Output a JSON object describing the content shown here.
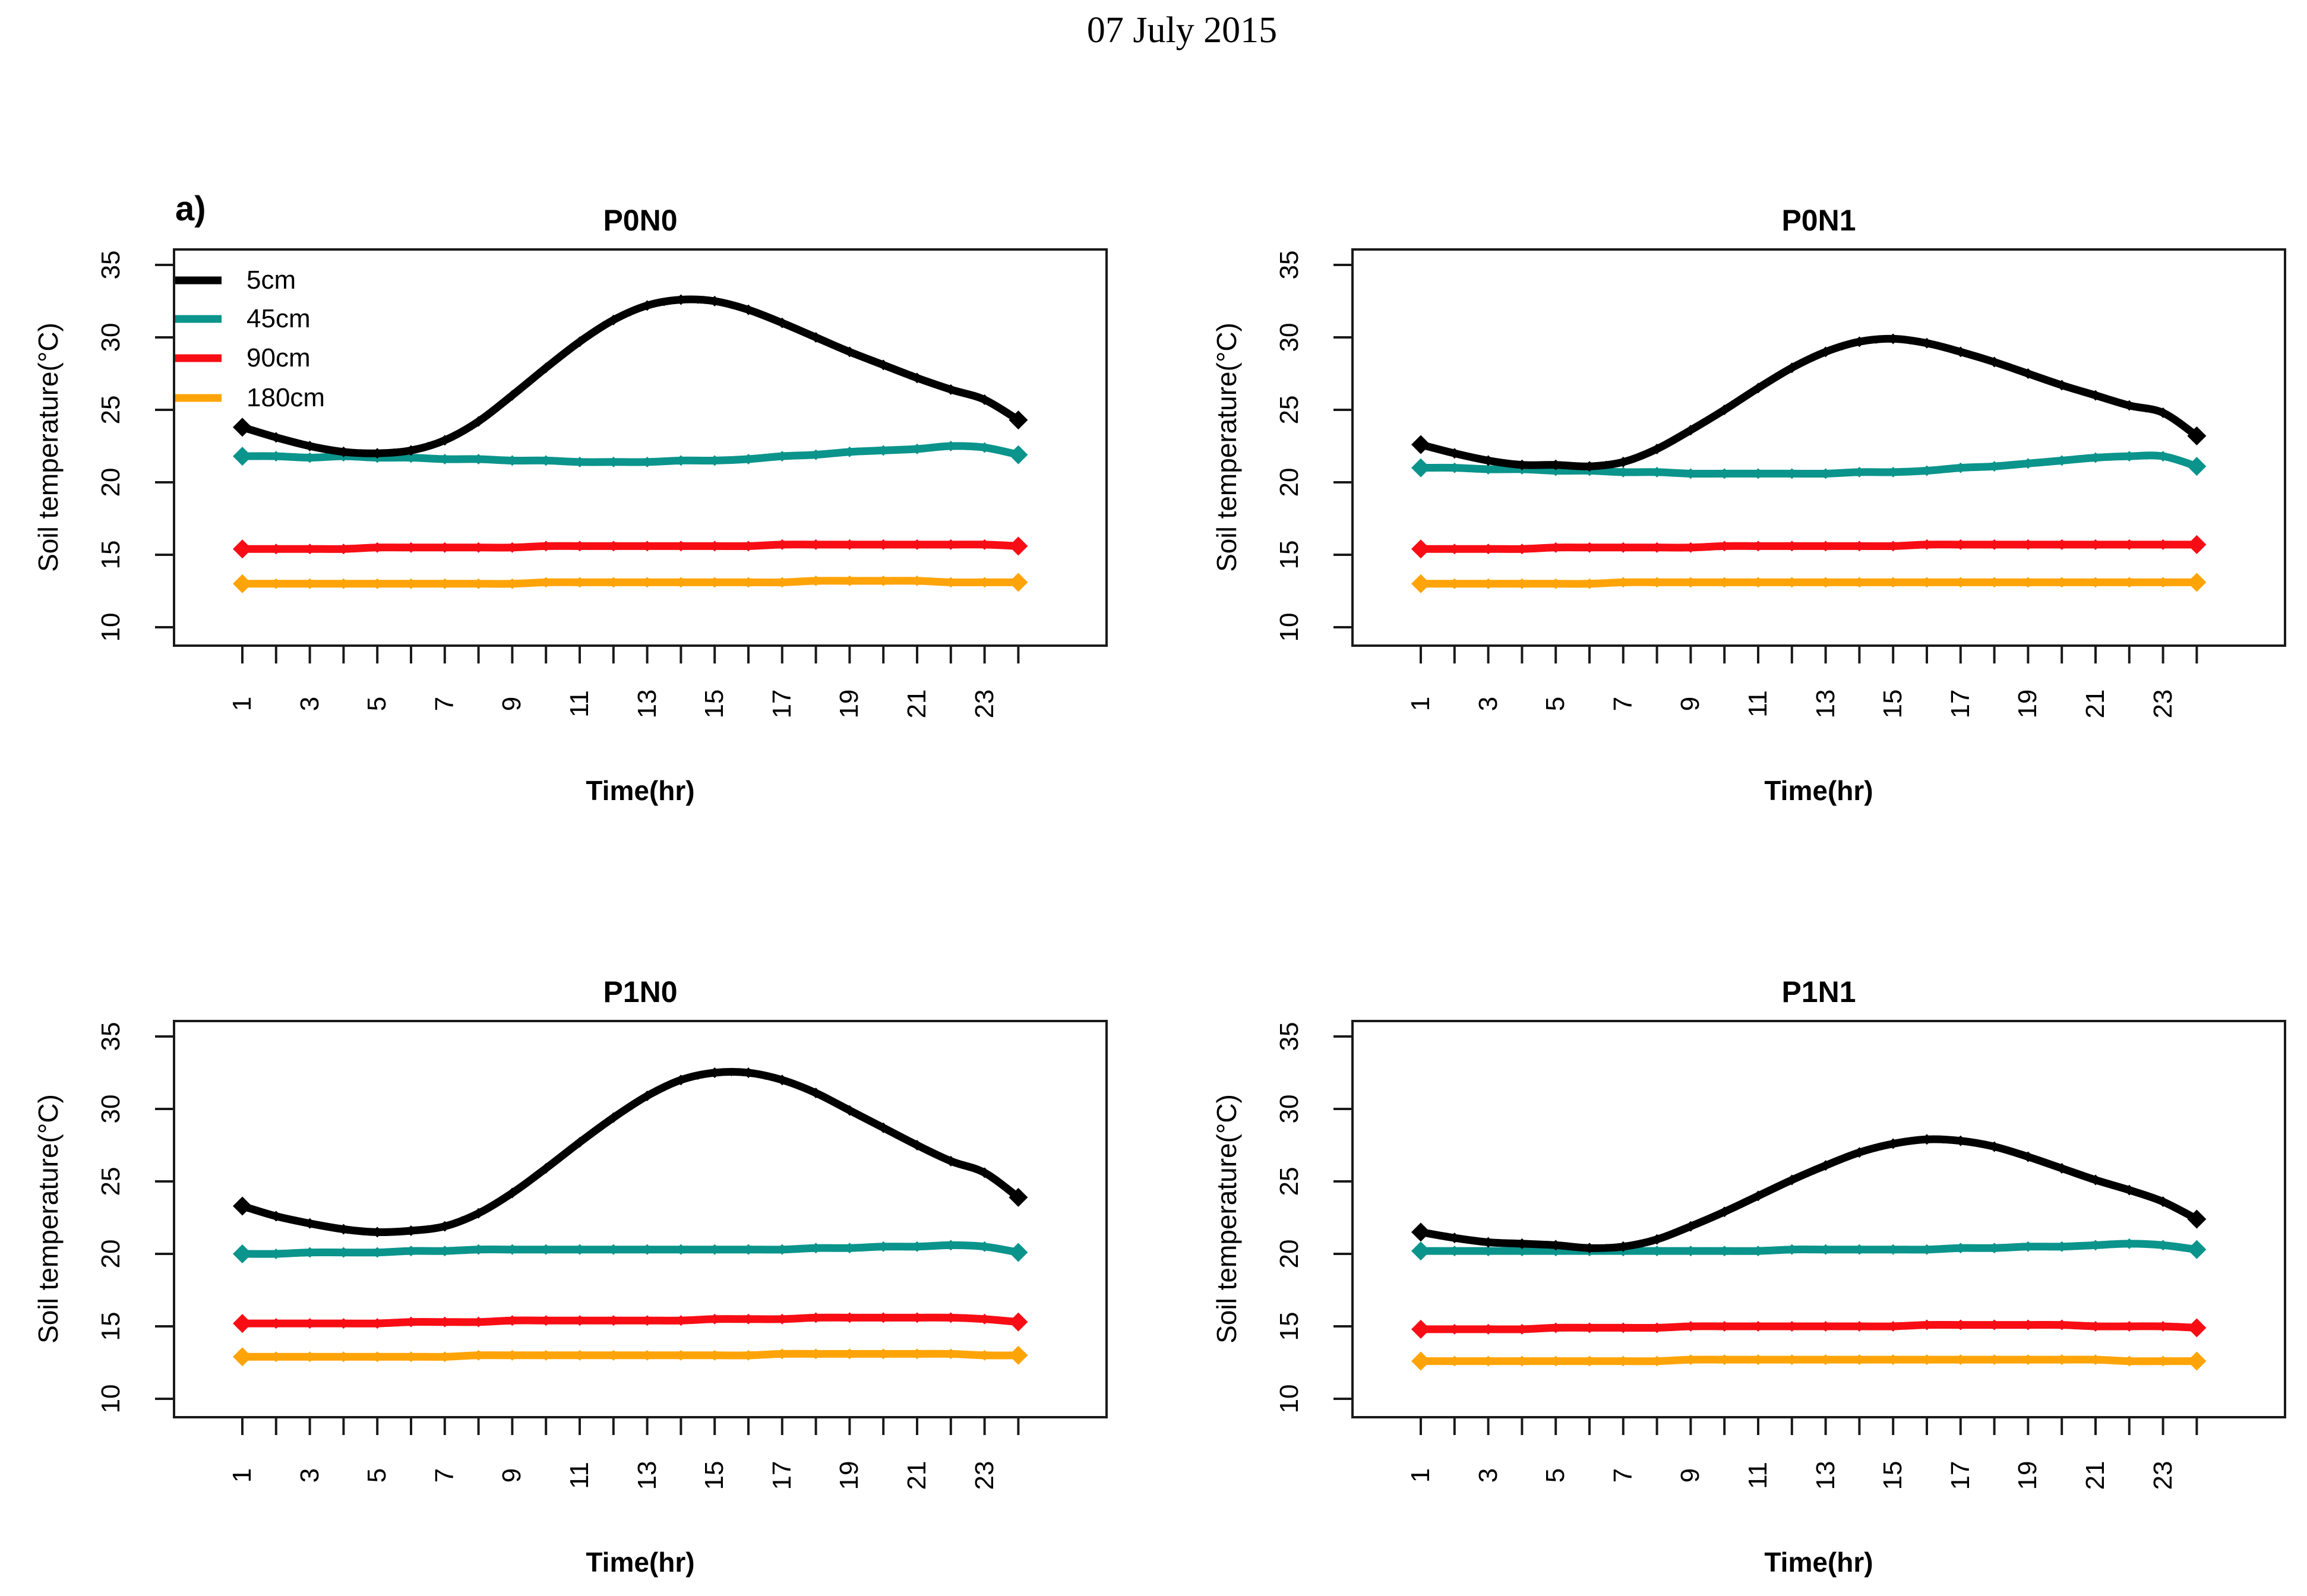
{
  "figure": {
    "title": "07 July 2015",
    "panel_label": "a)"
  },
  "legend": {
    "position": "top-left-inside-first-plot",
    "items": [
      {
        "label": "5cm",
        "color": "#000000"
      },
      {
        "label": "45cm",
        "color": "#0a948c"
      },
      {
        "label": "90cm",
        "color": "#f80d15"
      },
      {
        "label": "180cm",
        "color": "#ffa408"
      }
    ]
  },
  "axes": {
    "x_title": "Time(hr)",
    "y_title": "Soil temperature(°C)",
    "x_ticks": [
      1,
      2,
      3,
      4,
      5,
      6,
      7,
      8,
      9,
      10,
      11,
      12,
      13,
      14,
      15,
      16,
      17,
      18,
      19,
      20,
      21,
      22,
      23,
      24
    ],
    "x_label_hours": [
      1,
      3,
      5,
      7,
      9,
      11,
      13,
      15,
      17,
      19,
      21,
      23
    ],
    "y_ticks": [
      10,
      15,
      20,
      25,
      30,
      35
    ],
    "tick_label_rotation_deg": -90,
    "grid": "off"
  },
  "chart_data": [
    {
      "type": "line",
      "title": "P0N0",
      "xlabel": "Time(hr)",
      "ylabel": "Soil temperature(°C)",
      "xlim": [
        -1.0,
        26.6
      ],
      "ylim": [
        8.8,
        36.1
      ],
      "x": [
        1,
        2,
        3,
        4,
        5,
        6,
        7,
        8,
        9,
        10,
        11,
        12,
        13,
        14,
        15,
        16,
        17,
        18,
        19,
        20,
        21,
        22,
        23,
        24
      ],
      "series": [
        {
          "name": "5cm",
          "color": "#000000",
          "values": [
            23.8,
            23.1,
            22.5,
            22.1,
            22.0,
            22.2,
            22.9,
            24.2,
            26.0,
            27.9,
            29.7,
            31.2,
            32.2,
            32.6,
            32.5,
            31.9,
            31.0,
            30.0,
            29.0,
            28.1,
            27.2,
            26.4,
            25.7,
            24.3
          ]
        },
        {
          "name": "45cm",
          "color": "#0a948c",
          "values": [
            21.8,
            21.8,
            21.7,
            21.8,
            21.7,
            21.7,
            21.6,
            21.6,
            21.5,
            21.5,
            21.4,
            21.4,
            21.4,
            21.5,
            21.5,
            21.6,
            21.8,
            21.9,
            22.1,
            22.2,
            22.3,
            22.5,
            22.4,
            21.9
          ]
        },
        {
          "name": "90cm",
          "color": "#f80d15",
          "values": [
            15.4,
            15.4,
            15.4,
            15.4,
            15.5,
            15.5,
            15.5,
            15.5,
            15.5,
            15.6,
            15.6,
            15.6,
            15.6,
            15.6,
            15.6,
            15.6,
            15.7,
            15.7,
            15.7,
            15.7,
            15.7,
            15.7,
            15.7,
            15.6
          ]
        },
        {
          "name": "180cm",
          "color": "#ffa408",
          "values": [
            13.0,
            13.0,
            13.0,
            13.0,
            13.0,
            13.0,
            13.0,
            13.0,
            13.0,
            13.1,
            13.1,
            13.1,
            13.1,
            13.1,
            13.1,
            13.1,
            13.1,
            13.2,
            13.2,
            13.2,
            13.2,
            13.1,
            13.1,
            13.1
          ]
        }
      ]
    },
    {
      "type": "line",
      "title": "P0N1",
      "xlabel": "Time(hr)",
      "ylabel": "Soil temperature(°C)",
      "xlim": [
        -1.0,
        26.6
      ],
      "ylim": [
        8.8,
        36.1
      ],
      "x": [
        1,
        2,
        3,
        4,
        5,
        6,
        7,
        8,
        9,
        10,
        11,
        12,
        13,
        14,
        15,
        16,
        17,
        18,
        19,
        20,
        21,
        22,
        23,
        24
      ],
      "series": [
        {
          "name": "5cm",
          "color": "#000000",
          "values": [
            22.6,
            22.0,
            21.5,
            21.2,
            21.2,
            21.1,
            21.4,
            22.3,
            23.6,
            25.0,
            26.5,
            27.9,
            29.0,
            29.7,
            29.9,
            29.6,
            29.0,
            28.3,
            27.5,
            26.7,
            26.0,
            25.3,
            24.8,
            23.2
          ]
        },
        {
          "name": "45cm",
          "color": "#0a948c",
          "values": [
            21.0,
            21.0,
            20.9,
            20.9,
            20.8,
            20.8,
            20.7,
            20.7,
            20.6,
            20.6,
            20.6,
            20.6,
            20.6,
            20.7,
            20.7,
            20.8,
            21.0,
            21.1,
            21.3,
            21.5,
            21.7,
            21.8,
            21.8,
            21.1
          ]
        },
        {
          "name": "90cm",
          "color": "#f80d15",
          "values": [
            15.4,
            15.4,
            15.4,
            15.4,
            15.5,
            15.5,
            15.5,
            15.5,
            15.5,
            15.6,
            15.6,
            15.6,
            15.6,
            15.6,
            15.6,
            15.7,
            15.7,
            15.7,
            15.7,
            15.7,
            15.7,
            15.7,
            15.7,
            15.7
          ]
        },
        {
          "name": "180cm",
          "color": "#ffa408",
          "values": [
            13.0,
            13.0,
            13.0,
            13.0,
            13.0,
            13.0,
            13.1,
            13.1,
            13.1,
            13.1,
            13.1,
            13.1,
            13.1,
            13.1,
            13.1,
            13.1,
            13.1,
            13.1,
            13.1,
            13.1,
            13.1,
            13.1,
            13.1,
            13.1
          ]
        }
      ]
    },
    {
      "type": "line",
      "title": "P1N0",
      "xlabel": "Time(hr)",
      "ylabel": "Soil temperature(°C)",
      "xlim": [
        -1.0,
        26.6
      ],
      "ylim": [
        8.8,
        36.1
      ],
      "x": [
        1,
        2,
        3,
        4,
        5,
        6,
        7,
        8,
        9,
        10,
        11,
        12,
        13,
        14,
        15,
        16,
        17,
        18,
        19,
        20,
        21,
        22,
        23,
        24
      ],
      "series": [
        {
          "name": "5cm",
          "color": "#000000",
          "values": [
            23.3,
            22.6,
            22.1,
            21.7,
            21.5,
            21.6,
            21.9,
            22.8,
            24.2,
            25.9,
            27.7,
            29.4,
            30.9,
            32.0,
            32.5,
            32.5,
            32.0,
            31.1,
            29.9,
            28.7,
            27.5,
            26.4,
            25.6,
            23.9
          ]
        },
        {
          "name": "45cm",
          "color": "#0a948c",
          "values": [
            20.0,
            20.0,
            20.1,
            20.1,
            20.1,
            20.2,
            20.2,
            20.3,
            20.3,
            20.3,
            20.3,
            20.3,
            20.3,
            20.3,
            20.3,
            20.3,
            20.3,
            20.4,
            20.4,
            20.5,
            20.5,
            20.6,
            20.5,
            20.1
          ]
        },
        {
          "name": "90cm",
          "color": "#f80d15",
          "values": [
            15.2,
            15.2,
            15.2,
            15.2,
            15.2,
            15.3,
            15.3,
            15.3,
            15.4,
            15.4,
            15.4,
            15.4,
            15.4,
            15.4,
            15.5,
            15.5,
            15.5,
            15.6,
            15.6,
            15.6,
            15.6,
            15.6,
            15.5,
            15.3
          ]
        },
        {
          "name": "180cm",
          "color": "#ffa408",
          "values": [
            12.9,
            12.9,
            12.9,
            12.9,
            12.9,
            12.9,
            12.9,
            13.0,
            13.0,
            13.0,
            13.0,
            13.0,
            13.0,
            13.0,
            13.0,
            13.0,
            13.1,
            13.1,
            13.1,
            13.1,
            13.1,
            13.1,
            13.0,
            13.0
          ]
        }
      ]
    },
    {
      "type": "line",
      "title": "P1N1",
      "xlabel": "Time(hr)",
      "ylabel": "Soil temperature(°C)",
      "xlim": [
        -1.0,
        26.6
      ],
      "ylim": [
        8.8,
        36.1
      ],
      "x": [
        1,
        2,
        3,
        4,
        5,
        6,
        7,
        8,
        9,
        10,
        11,
        12,
        13,
        14,
        15,
        16,
        17,
        18,
        19,
        20,
        21,
        22,
        23,
        24
      ],
      "series": [
        {
          "name": "5cm",
          "color": "#000000",
          "values": [
            21.5,
            21.1,
            20.8,
            20.7,
            20.6,
            20.4,
            20.5,
            21.0,
            21.9,
            22.9,
            24.0,
            25.1,
            26.1,
            27.0,
            27.6,
            27.9,
            27.8,
            27.4,
            26.7,
            25.9,
            25.1,
            24.4,
            23.6,
            22.4
          ]
        },
        {
          "name": "45cm",
          "color": "#0a948c",
          "values": [
            20.2,
            20.2,
            20.2,
            20.2,
            20.2,
            20.2,
            20.2,
            20.2,
            20.2,
            20.2,
            20.2,
            20.3,
            20.3,
            20.3,
            20.3,
            20.3,
            20.4,
            20.4,
            20.5,
            20.5,
            20.6,
            20.7,
            20.6,
            20.3
          ]
        },
        {
          "name": "90cm",
          "color": "#f80d15",
          "values": [
            14.8,
            14.8,
            14.8,
            14.8,
            14.9,
            14.9,
            14.9,
            14.9,
            15.0,
            15.0,
            15.0,
            15.0,
            15.0,
            15.0,
            15.0,
            15.1,
            15.1,
            15.1,
            15.1,
            15.1,
            15.0,
            15.0,
            15.0,
            14.9
          ]
        },
        {
          "name": "180cm",
          "color": "#ffa408",
          "values": [
            12.6,
            12.6,
            12.6,
            12.6,
            12.6,
            12.6,
            12.6,
            12.6,
            12.7,
            12.7,
            12.7,
            12.7,
            12.7,
            12.7,
            12.7,
            12.7,
            12.7,
            12.7,
            12.7,
            12.7,
            12.7,
            12.6,
            12.6,
            12.6
          ]
        }
      ]
    }
  ]
}
